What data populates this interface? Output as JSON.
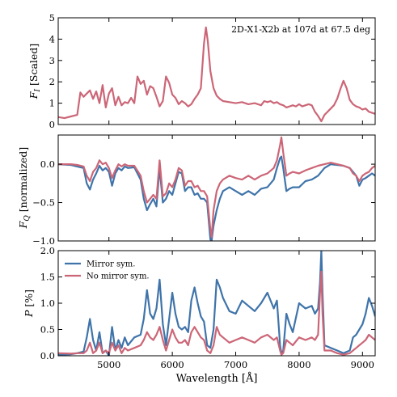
{
  "chart_data": {
    "type": "line",
    "x_axis": {
      "label": "Wavelength [Å]",
      "xlim": [
        4200,
        9200
      ],
      "ticks": [
        5000,
        6000,
        7000,
        8000,
        9000
      ],
      "tick_labels": [
        "5000",
        "6000",
        "7000",
        "8000",
        "9000"
      ]
    },
    "colors": {
      "mirror": "#3f74aa",
      "no_mirror": "#cc6677"
    },
    "legend": {
      "placement": "top-left",
      "entries": [
        "Mirror sym.",
        "No mirror sym."
      ]
    },
    "panels": [
      {
        "id": "flux",
        "ylabel_main": "F",
        "ylabel_sub": "I",
        "ylabel_rest": " [Scaled]",
        "ylim": [
          0,
          5
        ],
        "yticks": [
          0,
          1,
          2,
          3,
          4,
          5
        ],
        "ytick_labels": [
          "0",
          "1",
          "2",
          "3",
          "4",
          "5"
        ],
        "annotation": "2D-X1-X2b at 107d at 67.5 deg",
        "series": [
          {
            "key": "no_mirror",
            "x": [
              4200,
              4300,
              4400,
              4500,
              4550,
              4600,
              4650,
              4700,
              4750,
              4800,
              4850,
              4900,
              4950,
              5000,
              5050,
              5100,
              5150,
              5200,
              5250,
              5300,
              5350,
              5400,
              5450,
              5500,
              5550,
              5600,
              5650,
              5700,
              5750,
              5800,
              5850,
              5900,
              5950,
              6000,
              6050,
              6100,
              6150,
              6200,
              6250,
              6300,
              6350,
              6400,
              6450,
              6500,
              6530,
              6560,
              6600,
              6650,
              6700,
              6750,
              6800,
              6900,
              7000,
              7100,
              7200,
              7300,
              7400,
              7450,
              7500,
              7550,
              7600,
              7650,
              7700,
              7750,
              7800,
              7850,
              7900,
              7950,
              8000,
              8050,
              8100,
              8150,
              8200,
              8250,
              8300,
              8350,
              8400,
              8450,
              8500,
              8550,
              8600,
              8650,
              8700,
              8750,
              8800,
              8850,
              8900,
              8950,
              9000,
              9050,
              9100,
              9200
            ],
            "y": [
              0.35,
              0.3,
              0.38,
              0.45,
              1.5,
              1.3,
              1.45,
              1.6,
              1.2,
              1.55,
              1.0,
              1.85,
              0.8,
              1.45,
              1.7,
              0.9,
              1.3,
              0.9,
              1.05,
              1.0,
              1.25,
              1.0,
              2.25,
              1.9,
              2.05,
              1.4,
              1.8,
              1.7,
              1.3,
              0.85,
              1.1,
              2.25,
              1.95,
              1.4,
              1.25,
              0.95,
              1.1,
              1.0,
              0.85,
              0.95,
              1.2,
              1.4,
              1.7,
              3.8,
              4.55,
              3.9,
              2.5,
              1.7,
              1.35,
              1.2,
              1.1,
              1.05,
              1.0,
              1.05,
              0.95,
              1.0,
              0.9,
              1.1,
              1.05,
              1.1,
              1.0,
              1.05,
              0.95,
              0.9,
              0.8,
              0.85,
              0.9,
              0.85,
              0.95,
              0.85,
              0.9,
              0.95,
              0.9,
              0.6,
              0.4,
              0.15,
              0.45,
              0.6,
              0.75,
              0.9,
              1.2,
              1.65,
              2.05,
              1.7,
              1.15,
              0.95,
              0.85,
              0.8,
              0.7,
              0.75,
              0.6,
              0.5
            ]
          }
        ]
      },
      {
        "id": "fq",
        "ylabel_main": "F",
        "ylabel_sub": "Q",
        "ylabel_rest": " [normalized]",
        "ylim": [
          -1.0,
          0.38
        ],
        "yticks": [
          -1.0,
          -0.5,
          0.0
        ],
        "ytick_labels": [
          "−1.0",
          "−0.5",
          "0.0"
        ],
        "series": [
          {
            "key": "mirror",
            "x": [
              4200,
              4400,
              4500,
              4600,
              4650,
              4700,
              4750,
              4800,
              4850,
              4900,
              4950,
              5000,
              5050,
              5100,
              5150,
              5200,
              5250,
              5300,
              5400,
              5500,
              5550,
              5600,
              5650,
              5700,
              5750,
              5800,
              5850,
              5900,
              5950,
              6000,
              6050,
              6100,
              6150,
              6200,
              6250,
              6300,
              6350,
              6400,
              6450,
              6500,
              6550,
              6600,
              6620,
              6650,
              6700,
              6750,
              6800,
              6900,
              7000,
              7100,
              7200,
              7300,
              7400,
              7500,
              7600,
              7650,
              7700,
              7720,
              7750,
              7800,
              7850,
              7900,
              8000,
              8100,
              8200,
              8300,
              8400,
              8500,
              8600,
              8700,
              8800,
              8850,
              8900,
              8950,
              9000,
              9050,
              9100,
              9150,
              9200
            ],
            "y": [
              0.0,
              -0.01,
              -0.03,
              -0.05,
              -0.25,
              -0.33,
              -0.2,
              -0.12,
              -0.02,
              -0.08,
              -0.05,
              -0.1,
              -0.28,
              -0.12,
              -0.05,
              -0.08,
              -0.03,
              -0.05,
              -0.04,
              -0.2,
              -0.45,
              -0.6,
              -0.52,
              -0.45,
              -0.55,
              -0.05,
              -0.5,
              -0.45,
              -0.35,
              -0.4,
              -0.25,
              -0.1,
              -0.12,
              -0.35,
              -0.3,
              -0.3,
              -0.4,
              -0.38,
              -0.45,
              -0.45,
              -0.5,
              -0.98,
              -1.0,
              -0.8,
              -0.6,
              -0.45,
              -0.35,
              -0.3,
              -0.35,
              -0.4,
              -0.35,
              -0.4,
              -0.32,
              -0.3,
              -0.2,
              -0.05,
              0.08,
              0.1,
              -0.05,
              -0.35,
              -0.32,
              -0.3,
              -0.3,
              -0.22,
              -0.2,
              -0.15,
              -0.05,
              0.0,
              -0.01,
              -0.02,
              -0.05,
              -0.1,
              -0.15,
              -0.28,
              -0.2,
              -0.18,
              -0.15,
              -0.12,
              -0.15
            ]
          },
          {
            "key": "no_mirror",
            "x": [
              4200,
              4400,
              4500,
              4600,
              4650,
              4700,
              4750,
              4800,
              4850,
              4900,
              4950,
              5000,
              5050,
              5100,
              5150,
              5200,
              5250,
              5300,
              5400,
              5500,
              5550,
              5600,
              5650,
              5700,
              5750,
              5800,
              5850,
              5900,
              5950,
              6000,
              6050,
              6100,
              6150,
              6200,
              6250,
              6300,
              6350,
              6400,
              6450,
              6500,
              6550,
              6600,
              6620,
              6650,
              6700,
              6750,
              6800,
              6900,
              7000,
              7100,
              7200,
              7300,
              7400,
              7500,
              7600,
              7650,
              7700,
              7720,
              7750,
              7800,
              7850,
              7900,
              8000,
              8100,
              8200,
              8300,
              8400,
              8500,
              8600,
              8700,
              8800,
              8850,
              8900,
              8950,
              9000,
              9050,
              9100,
              9150,
              9200
            ],
            "y": [
              0.0,
              0.0,
              -0.01,
              -0.03,
              -0.15,
              -0.22,
              -0.1,
              -0.05,
              0.05,
              0.0,
              0.02,
              -0.05,
              -0.18,
              -0.08,
              0.0,
              -0.03,
              0.0,
              -0.02,
              -0.02,
              -0.15,
              -0.35,
              -0.5,
              -0.45,
              -0.4,
              -0.45,
              0.05,
              -0.42,
              -0.38,
              -0.25,
              -0.3,
              -0.2,
              -0.05,
              -0.08,
              -0.28,
              -0.22,
              -0.22,
              -0.3,
              -0.28,
              -0.35,
              -0.35,
              -0.42,
              -0.85,
              -0.95,
              -0.6,
              -0.35,
              -0.25,
              -0.2,
              -0.15,
              -0.18,
              -0.2,
              -0.15,
              -0.2,
              -0.15,
              -0.12,
              -0.05,
              0.05,
              0.25,
              0.35,
              0.15,
              -0.15,
              -0.12,
              -0.1,
              -0.12,
              -0.08,
              -0.05,
              -0.02,
              0.0,
              0.02,
              0.0,
              -0.02,
              -0.05,
              -0.12,
              -0.15,
              -0.22,
              -0.15,
              -0.12,
              -0.1,
              -0.05,
              -0.02
            ]
          }
        ]
      },
      {
        "id": "p",
        "ylabel_main": "P",
        "ylabel_sub": "",
        "ylabel_rest": " [%]",
        "ylim": [
          0.0,
          2.0
        ],
        "yticks": [
          0.0,
          0.5,
          1.0,
          1.5,
          2.0
        ],
        "ytick_labels": [
          "0.0",
          "0.5",
          "1.0",
          "1.5",
          "2.0"
        ],
        "series": [
          {
            "key": "mirror",
            "x": [
              4200,
              4400,
              4500,
              4600,
              4650,
              4700,
              4750,
              4800,
              4850,
              4900,
              4950,
              5000,
              5050,
              5100,
              5150,
              5200,
              5250,
              5300,
              5400,
              5500,
              5550,
              5600,
              5650,
              5700,
              5750,
              5800,
              5850,
              5900,
              5950,
              6000,
              6050,
              6100,
              6150,
              6200,
              6250,
              6300,
              6350,
              6400,
              6450,
              6500,
              6550,
              6600,
              6650,
              6700,
              6750,
              6800,
              6900,
              7000,
              7100,
              7200,
              7300,
              7400,
              7500,
              7600,
              7650,
              7700,
              7720,
              7750,
              7800,
              7850,
              7900,
              8000,
              8100,
              8200,
              8250,
              8300,
              8330,
              8350,
              8370,
              8400,
              8500,
              8600,
              8700,
              8800,
              8850,
              8900,
              8950,
              9000,
              9050,
              9100,
              9150,
              9200
            ],
            "y": [
              0.02,
              0.03,
              0.05,
              0.08,
              0.35,
              0.7,
              0.3,
              0.1,
              0.45,
              0.05,
              0.1,
              0.0,
              0.55,
              0.1,
              0.3,
              0.15,
              0.35,
              0.2,
              0.35,
              0.4,
              0.7,
              1.25,
              0.8,
              0.7,
              0.9,
              1.45,
              0.6,
              0.2,
              0.7,
              1.2,
              0.8,
              0.55,
              0.5,
              0.55,
              0.45,
              1.05,
              1.3,
              1.0,
              0.75,
              0.65,
              0.2,
              0.15,
              0.5,
              1.45,
              1.3,
              1.1,
              0.85,
              0.8,
              1.05,
              0.95,
              0.85,
              1.0,
              1.2,
              0.9,
              1.05,
              0.2,
              0.05,
              0.1,
              0.8,
              0.6,
              0.45,
              1.0,
              0.9,
              0.95,
              0.8,
              0.9,
              1.4,
              2.0,
              1.2,
              0.2,
              0.15,
              0.1,
              0.05,
              0.1,
              0.35,
              0.4,
              0.5,
              0.6,
              0.8,
              1.1,
              0.95,
              0.75
            ]
          },
          {
            "key": "no_mirror",
            "x": [
              4200,
              4400,
              4500,
              4600,
              4650,
              4700,
              4750,
              4800,
              4850,
              4900,
              4950,
              5000,
              5050,
              5100,
              5150,
              5200,
              5250,
              5300,
              5400,
              5500,
              5550,
              5600,
              5650,
              5700,
              5750,
              5800,
              5850,
              5900,
              5950,
              6000,
              6050,
              6100,
              6150,
              6200,
              6250,
              6300,
              6350,
              6400,
              6450,
              6500,
              6550,
              6600,
              6650,
              6700,
              6750,
              6800,
              6900,
              7000,
              7100,
              7200,
              7300,
              7400,
              7500,
              7600,
              7650,
              7700,
              7720,
              7750,
              7800,
              7850,
              7900,
              8000,
              8100,
              8200,
              8250,
              8300,
              8330,
              8350,
              8370,
              8400,
              8500,
              8600,
              8700,
              8800,
              8850,
              8900,
              8950,
              9000,
              9050,
              9100,
              9150,
              9200
            ],
            "y": [
              0.05,
              0.04,
              0.05,
              0.05,
              0.1,
              0.25,
              0.05,
              0.1,
              0.25,
              0.05,
              0.1,
              0.05,
              0.25,
              0.1,
              0.2,
              0.05,
              0.15,
              0.1,
              0.15,
              0.2,
              0.3,
              0.45,
              0.35,
              0.3,
              0.4,
              0.55,
              0.3,
              0.1,
              0.3,
              0.5,
              0.35,
              0.25,
              0.25,
              0.3,
              0.2,
              0.45,
              0.55,
              0.45,
              0.35,
              0.3,
              0.1,
              0.05,
              0.2,
              0.55,
              0.4,
              0.35,
              0.25,
              0.3,
              0.35,
              0.3,
              0.25,
              0.35,
              0.4,
              0.3,
              0.35,
              0.1,
              0.02,
              0.05,
              0.3,
              0.25,
              0.2,
              0.35,
              0.3,
              0.35,
              0.3,
              0.4,
              1.2,
              1.6,
              0.8,
              0.1,
              0.1,
              0.05,
              0.02,
              0.05,
              0.1,
              0.15,
              0.2,
              0.25,
              0.3,
              0.4,
              0.35,
              0.3
            ]
          }
        ]
      }
    ]
  }
}
